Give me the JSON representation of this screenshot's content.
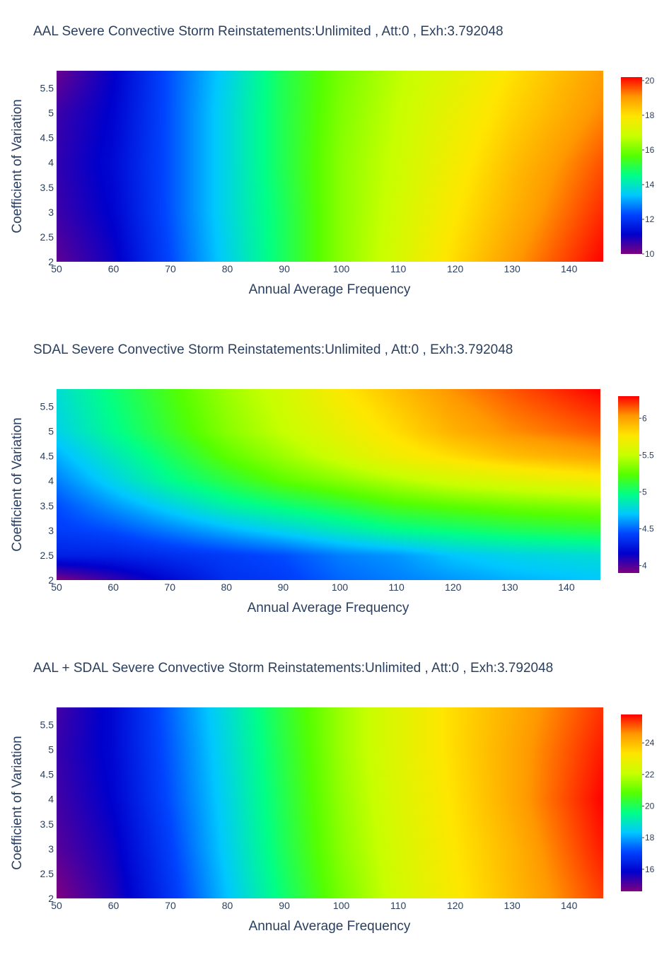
{
  "colorscale": [
    "#800080",
    "#0000cc",
    "#0044ff",
    "#00c8ff",
    "#00ff88",
    "#55ff00",
    "#c8ff00",
    "#ffe600",
    "#ff9900",
    "#ff0000"
  ],
  "chart_data": [
    {
      "type": "heatmap",
      "title": "AAL Severe Convective Storm  Reinstatements:Unlimited  , Att:0  , Exh:3.792048",
      "xlabel": "Annual Average Frequency",
      "ylabel": "Coefficient of Variation",
      "xlim": [
        50,
        146
      ],
      "ylim": [
        2,
        5.85
      ],
      "x_ticks": [
        50,
        60,
        70,
        80,
        90,
        100,
        110,
        120,
        130,
        140
      ],
      "y_ticks": [
        2,
        2.5,
        3,
        3.5,
        4,
        4.5,
        5,
        5.5
      ],
      "y_tick_labels": [
        "2",
        "2.5",
        "3",
        "3.5",
        "4",
        "4.5",
        "5",
        "5.5"
      ],
      "zlim": [
        10,
        20.2
      ],
      "colorbar_ticks": [
        10,
        12,
        14,
        16,
        18,
        20
      ],
      "grid_x": [
        50,
        60,
        70,
        80,
        90,
        100,
        110,
        120,
        130,
        146
      ],
      "grid_y": [
        2,
        3,
        4,
        5,
        5.85
      ],
      "z": [
        [
          10.3,
          11.0,
          12.3,
          13.6,
          14.9,
          16.2,
          17.1,
          18.1,
          19.0,
          20.2
        ],
        [
          10.6,
          11.2,
          12.4,
          13.7,
          14.9,
          16.2,
          17.0,
          17.9,
          18.7,
          19.9
        ],
        [
          10.7,
          11.3,
          12.4,
          13.7,
          15.0,
          16.2,
          16.9,
          17.7,
          18.5,
          19.6
        ],
        [
          10.6,
          11.2,
          12.4,
          13.7,
          15.0,
          16.1,
          16.8,
          17.5,
          18.2,
          19.2
        ],
        [
          10.2,
          11.1,
          12.4,
          13.6,
          15.0,
          16.0,
          16.7,
          17.3,
          18.0,
          19.0
        ]
      ]
    },
    {
      "type": "heatmap",
      "title": "SDAL Severe Convective Storm  Reinstatements:Unlimited  , Att:0  , Exh:3.792048",
      "xlabel": "Annual Average Frequency",
      "ylabel": "Coefficient of Variation",
      "xlim": [
        50,
        146
      ],
      "ylim": [
        2,
        5.85
      ],
      "x_ticks": [
        50,
        60,
        70,
        80,
        90,
        100,
        110,
        120,
        130,
        140
      ],
      "y_ticks": [
        2,
        2.5,
        3,
        3.5,
        4,
        4.5,
        5,
        5.5
      ],
      "y_tick_labels": [
        "2",
        "2.5",
        "3",
        "3.5",
        "4",
        "4.5",
        "5",
        "5.5"
      ],
      "zlim": [
        3.9,
        6.3
      ],
      "colorbar_ticks": [
        4,
        4.5,
        5,
        5.5,
        6
      ],
      "colorbar_tick_labels": [
        "4",
        "4.5",
        "5",
        "5.5",
        "6"
      ],
      "grid_x": [
        50,
        60,
        70,
        80,
        90,
        100,
        110,
        120,
        130,
        146
      ],
      "grid_y": [
        2,
        2.5,
        3,
        3.5,
        4,
        4.5,
        5,
        5.85
      ],
      "z": [
        [
          3.9,
          4.05,
          4.2,
          4.35,
          4.4,
          4.5,
          4.55,
          4.6,
          4.65,
          4.7
        ],
        [
          4.3,
          4.3,
          4.35,
          4.4,
          4.45,
          4.55,
          4.6,
          4.7,
          4.75,
          4.8
        ],
        [
          4.4,
          4.45,
          4.55,
          4.65,
          4.75,
          4.85,
          4.95,
          5.0,
          5.05,
          5.1
        ],
        [
          4.45,
          4.6,
          4.75,
          4.9,
          5.0,
          5.1,
          5.2,
          5.25,
          5.3,
          5.35
        ],
        [
          4.55,
          4.75,
          4.95,
          5.1,
          5.25,
          5.35,
          5.45,
          5.55,
          5.6,
          5.7
        ],
        [
          4.65,
          4.85,
          5.05,
          5.25,
          5.4,
          5.55,
          5.7,
          5.8,
          5.9,
          6.0
        ],
        [
          4.75,
          4.95,
          5.15,
          5.35,
          5.5,
          5.65,
          5.8,
          5.95,
          6.05,
          6.15
        ],
        [
          4.8,
          5.0,
          5.2,
          5.4,
          5.55,
          5.75,
          5.9,
          6.05,
          6.15,
          6.3
        ]
      ]
    },
    {
      "type": "heatmap",
      "title": "AAL + SDAL Severe Convective Storm  Reinstatements:Unlimited  , Att:0  , Exh:3.792048",
      "xlabel": "Annual Average Frequency",
      "ylabel": "Coefficient of Variation",
      "xlim": [
        50,
        146
      ],
      "ylim": [
        2,
        5.85
      ],
      "x_ticks": [
        50,
        60,
        70,
        80,
        90,
        100,
        110,
        120,
        130,
        140
      ],
      "y_ticks": [
        2,
        2.5,
        3,
        3.5,
        4,
        4.5,
        5,
        5.5
      ],
      "y_tick_labels": [
        "2",
        "2.5",
        "3",
        "3.5",
        "4",
        "4.5",
        "5",
        "5.5"
      ],
      "zlim": [
        14.6,
        25.8
      ],
      "colorbar_ticks": [
        16,
        18,
        20,
        22,
        24
      ],
      "grid_x": [
        50,
        60,
        70,
        80,
        90,
        100,
        110,
        120,
        130,
        146
      ],
      "grid_y": [
        2,
        3,
        4,
        5,
        5.85
      ],
      "z": [
        [
          14.6,
          15.5,
          16.8,
          18.3,
          19.8,
          21.2,
          22.3,
          23.2,
          24.0,
          25.3
        ],
        [
          15.0,
          15.7,
          17.0,
          18.5,
          20.0,
          21.4,
          22.4,
          23.3,
          24.1,
          25.6
        ],
        [
          15.2,
          15.9,
          17.2,
          18.6,
          20.1,
          21.5,
          22.5,
          23.4,
          24.3,
          25.8
        ],
        [
          15.3,
          16.0,
          17.3,
          18.7,
          20.2,
          21.6,
          22.6,
          23.5,
          24.3,
          25.6
        ],
        [
          15.2,
          16.0,
          17.4,
          18.8,
          20.3,
          21.6,
          22.6,
          23.5,
          24.2,
          25.4
        ]
      ]
    }
  ]
}
